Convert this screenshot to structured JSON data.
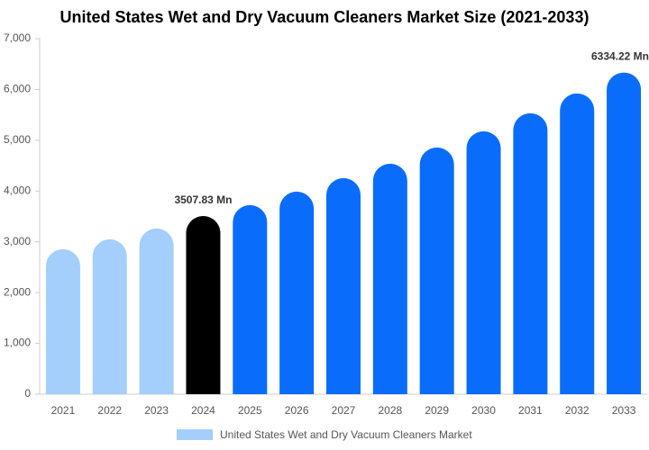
{
  "chart_data": {
    "type": "bar",
    "title": "United States Wet and Dry Vacuum Cleaners Market Size (2021-2033)",
    "categories": [
      "2021",
      "2022",
      "2023",
      "2024",
      "2025",
      "2026",
      "2027",
      "2028",
      "2029",
      "2030",
      "2031",
      "2032",
      "2033"
    ],
    "series": [
      {
        "name": "United States Wet and Dry Vacuum Cleaners Market",
        "color": "#a4cefc",
        "values": [
          2855,
          3050,
          3262,
          3507.83,
          3723,
          3989,
          4255,
          4539,
          4858,
          5177,
          5532,
          5922,
          6334.22
        ],
        "value_labels": [
          null,
          null,
          null,
          "3507.83 Mn",
          null,
          null,
          null,
          null,
          null,
          null,
          null,
          null,
          "6334.22 Mn"
        ],
        "colors": [
          "#a4cefc",
          "#a4cefc",
          "#a4cefc",
          "#000000",
          "#0a6cfa",
          "#0a6cfa",
          "#0a6cfa",
          "#0a6cfa",
          "#0a6cfa",
          "#0a6cfa",
          "#0a6cfa",
          "#0a6cfa",
          "#0a6cfa"
        ]
      }
    ],
    "ylim": [
      0,
      7000
    ],
    "yticks": [
      0,
      {
        "value": 1000,
        "label": "1,000"
      },
      {
        "value": 2000,
        "label": "2,000"
      },
      {
        "value": 3000,
        "label": "3,000"
      },
      {
        "value": 4000,
        "label": "4,000"
      },
      {
        "value": 5000,
        "label": "5,000"
      },
      {
        "value": 6000,
        "label": "6,000"
      },
      {
        "value": 7000,
        "label": "7,000"
      }
    ],
    "grid": false
  }
}
